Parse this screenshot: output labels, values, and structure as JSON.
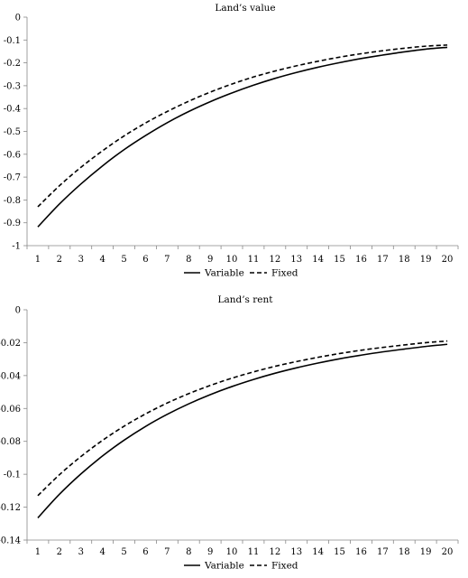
{
  "chart_data": [
    {
      "type": "line",
      "title": "Land’s value",
      "x": [
        1,
        2,
        3,
        4,
        5,
        6,
        7,
        8,
        9,
        10,
        11,
        12,
        13,
        14,
        15,
        16,
        17,
        18,
        19,
        20
      ],
      "ylim": [
        -1,
        0
      ],
      "yticks": [
        0,
        -0.1,
        -0.2,
        -0.3,
        -0.4,
        -0.5,
        -0.6,
        -0.7,
        -0.8,
        -0.9,
        -1
      ],
      "ytick_labels": [
        "0",
        "-0.1",
        "-0.2",
        "-0.3",
        "-0.4",
        "-0.5",
        "-0.6",
        "-0.7",
        "-0.8",
        "-0.9",
        "-1"
      ],
      "grid": false,
      "legend_position": "bottom",
      "series": [
        {
          "name": "Variable",
          "style": "solid",
          "values": [
            -0.918,
            -0.818,
            -0.73,
            -0.651,
            -0.58,
            -0.518,
            -0.462,
            -0.413,
            -0.37,
            -0.332,
            -0.298,
            -0.268,
            -0.242,
            -0.219,
            -0.199,
            -0.181,
            -0.166,
            -0.152,
            -0.14,
            -0.132
          ]
        },
        {
          "name": "Fixed",
          "style": "dashed",
          "values": [
            -0.83,
            -0.738,
            -0.657,
            -0.585,
            -0.52,
            -0.463,
            -0.413,
            -0.368,
            -0.328,
            -0.293,
            -0.262,
            -0.236,
            -0.213,
            -0.193,
            -0.175,
            -0.16,
            -0.147,
            -0.136,
            -0.127,
            -0.122
          ]
        }
      ]
    },
    {
      "type": "line",
      "title": "Land’s rent",
      "x": [
        1,
        2,
        3,
        4,
        5,
        6,
        7,
        8,
        9,
        10,
        11,
        12,
        13,
        14,
        15,
        16,
        17,
        18,
        19,
        20
      ],
      "ylim": [
        -0.14,
        0
      ],
      "yticks": [
        0,
        -0.02,
        -0.04,
        -0.06,
        -0.08,
        -0.1,
        -0.12,
        -0.14
      ],
      "ytick_labels": [
        "0",
        "-0.02",
        "-0.04",
        "-0.06",
        "-0.08",
        "-0.1",
        "-0.12",
        "-0.14"
      ],
      "grid": false,
      "legend_position": "bottom",
      "series": [
        {
          "name": "Variable",
          "style": "solid",
          "values": [
            -0.1265,
            -0.1122,
            -0.0998,
            -0.0889,
            -0.0793,
            -0.0709,
            -0.0636,
            -0.0572,
            -0.0516,
            -0.0467,
            -0.0424,
            -0.0386,
            -0.0353,
            -0.0324,
            -0.0298,
            -0.0276,
            -0.0256,
            -0.0239,
            -0.0223,
            -0.021
          ]
        },
        {
          "name": "Fixed",
          "style": "dashed",
          "values": [
            -0.113,
            -0.1003,
            -0.0892,
            -0.0794,
            -0.0708,
            -0.0633,
            -0.0567,
            -0.051,
            -0.046,
            -0.0416,
            -0.0378,
            -0.0344,
            -0.0315,
            -0.0289,
            -0.0266,
            -0.0246,
            -0.0229,
            -0.0214,
            -0.02,
            -0.019
          ]
        }
      ]
    }
  ]
}
